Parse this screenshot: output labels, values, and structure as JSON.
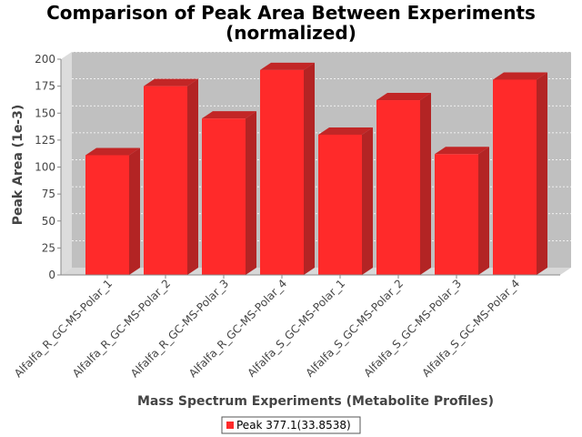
{
  "chart_data": {
    "type": "bar",
    "title_line1": "Comparison of Peak Area Between Experiments",
    "title_line2": "(normalized)",
    "xlabel": "Mass Spectrum Experiments (Metabolite Profiles)",
    "ylabel": "Peak Area (1e-3)",
    "ylim": [
      0,
      200
    ],
    "yticks": [
      "0",
      "25",
      "50",
      "75",
      "100",
      "125",
      "150",
      "175",
      "200"
    ],
    "categories": [
      "Alfalfa_R_GC-MS-Polar_1",
      "Alfalfa_R_GC-MS-Polar_2",
      "Alfalfa_R_GC-MS-Polar_3",
      "Alfalfa_R_GC-MS-Polar_4",
      "Alfalfa_S_GC-MS-Polar_1",
      "Alfalfa_S_GC-MS-Polar_2",
      "Alfalfa_S_GC-MS-Polar_3",
      "Alfalfa_S_GC-MS-Polar_4"
    ],
    "series": [
      {
        "name": "Peak 377.1(33.8538)",
        "color": "#ff2a2a",
        "values": [
          111,
          175,
          145,
          190,
          130,
          162,
          112,
          181
        ]
      }
    ],
    "grid": true,
    "legend_position": "bottom",
    "plot_background": "#c0c0c0"
  }
}
